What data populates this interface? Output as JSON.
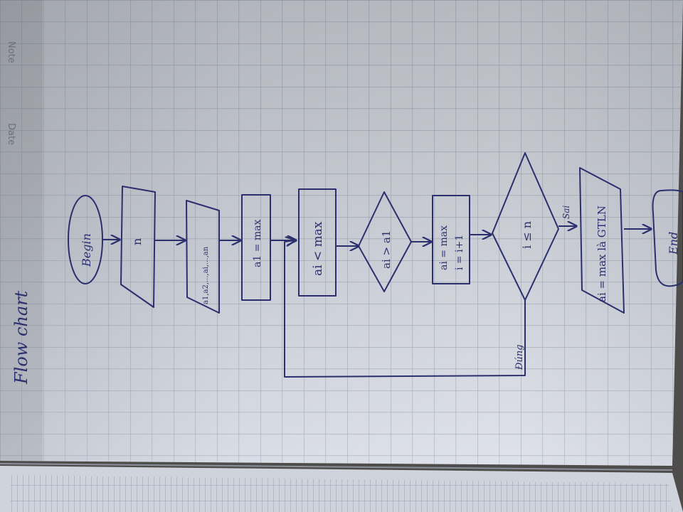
{
  "page": {
    "header_labels": {
      "note": "Note",
      "date": "Date"
    },
    "heading": "Flow chart"
  },
  "flowchart": {
    "nodes": [
      {
        "id": "begin",
        "shape": "terminator",
        "label": "Begin"
      },
      {
        "id": "input-n",
        "shape": "parallelogram",
        "label": "n"
      },
      {
        "id": "input-array",
        "shape": "parallelogram",
        "label": "a1,a2,...,ai,...,an"
      },
      {
        "id": "assign-max",
        "shape": "process",
        "label": "a1 = max"
      },
      {
        "id": "loop-box",
        "shape": "process",
        "label": "ai < max"
      },
      {
        "id": "compare",
        "shape": "decision",
        "label": "ai > a1"
      },
      {
        "id": "update",
        "shape": "process",
        "label": "ai = max",
        "label2": "i = i+1"
      },
      {
        "id": "check-i",
        "shape": "decision",
        "label": "i ≤ n"
      },
      {
        "id": "output",
        "shape": "parallelogram",
        "label": "ai = max là GTLN"
      },
      {
        "id": "end",
        "shape": "terminator",
        "label": "End"
      }
    ],
    "edge_labels": {
      "yes": "Đúng",
      "no": "Sai"
    }
  },
  "colors": {
    "paper": "#d7dbe4",
    "grid": "#9ea6b5",
    "ink": "#2b2f6e",
    "shadow": "#7d8494"
  }
}
